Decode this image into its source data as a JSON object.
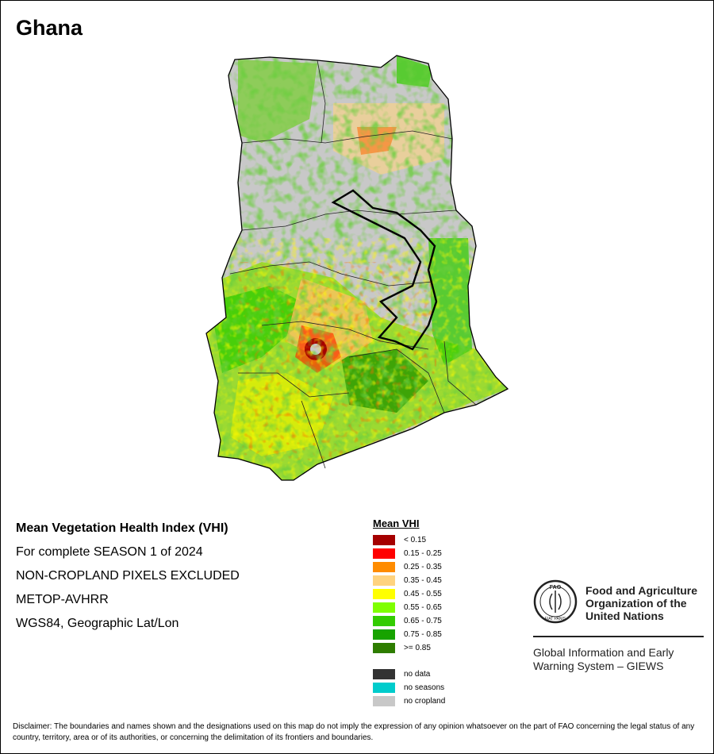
{
  "map": {
    "title": "Ghana",
    "info_lines": [
      "Mean Vegetation Health Index (VHI)",
      "For complete SEASON 1 of 2024",
      "NON-CROPLAND PIXELS EXCLUDED",
      "METOP-AVHRR",
      "WGS84, Geographic Lat/Lon"
    ]
  },
  "legend": {
    "title": "Mean VHI",
    "classes": [
      {
        "label": "< 0.15",
        "color": "#a50000"
      },
      {
        "label": "0.15 - 0.25",
        "color": "#ff0000"
      },
      {
        "label": "0.25 - 0.35",
        "color": "#ff8c00"
      },
      {
        "label": "0.35 - 0.45",
        "color": "#ffd37f"
      },
      {
        "label": "0.45 - 0.55",
        "color": "#ffff00"
      },
      {
        "label": "0.55 - 0.65",
        "color": "#7fff00"
      },
      {
        "label": "0.65 - 0.75",
        "color": "#33cc00"
      },
      {
        "label": "0.75 - 0.85",
        "color": "#17a300"
      },
      {
        "label": ">= 0.85",
        "color": "#2e7d00"
      }
    ],
    "extra": [
      {
        "label": "no data",
        "color": "#333333"
      },
      {
        "label": "no seasons",
        "color": "#00cccc"
      },
      {
        "label": "no cropland",
        "color": "#c8c8c8"
      }
    ]
  },
  "logo": {
    "org_line1": "Food and Agriculture",
    "org_line2": "Organization of the",
    "org_line3": "United Nations",
    "emblem_text": "FAO",
    "emblem_motto": "FIAT PANIS",
    "giews_line1": "Global Information and Early",
    "giews_line2": "Warning System – GIEWS"
  },
  "disclaimer": "Disclaimer: The boundaries and names shown and the designations used on this map do not imply the expression of any opinion whatsoever on the part of FAO concerning the legal status of any country, territory, area or of its authorities, or concerning the delimitation of its frontiers and boundaries."
}
